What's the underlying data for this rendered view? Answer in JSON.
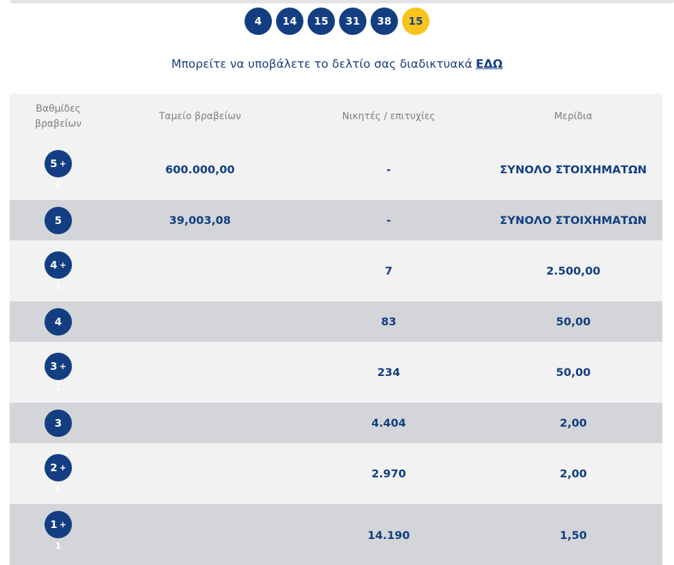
{
  "balls": [
    "4",
    "14",
    "15",
    "31",
    "38"
  ],
  "joker": "15",
  "notice": {
    "text": "Μπορείτε να υποβάλετε το δελτίο σας διαδικτυακά",
    "link": "ΕΔΩ"
  },
  "table": {
    "headers": {
      "category": "Βαθμίδες βραβείων",
      "fund": "Ταμείο βραβείων",
      "winners": "Νικητές / επιτυχίες",
      "share": "Μερίδια"
    },
    "rows": [
      {
        "cat": "5",
        "plus": "+",
        "sub": "1",
        "fund": "600.000,00",
        "winners": "-",
        "share": "ΣΥΝΟΛΟ ΣΤΟΙΧΗΜΑΤΩΝ"
      },
      {
        "cat": "5",
        "plus": "",
        "sub": "",
        "fund": "39,003,08",
        "winners": "-",
        "share": "ΣΥΝΟΛΟ ΣΤΟΙΧΗΜΑΤΩΝ"
      },
      {
        "cat": "4",
        "plus": "+",
        "sub": "1",
        "fund": "",
        "winners": "7",
        "share": "2.500,00"
      },
      {
        "cat": "4",
        "plus": "",
        "sub": "",
        "fund": "",
        "winners": "83",
        "share": "50,00"
      },
      {
        "cat": "3",
        "plus": "+",
        "sub": "1",
        "fund": "",
        "winners": "234",
        "share": "50,00"
      },
      {
        "cat": "3",
        "plus": "",
        "sub": "",
        "fund": "",
        "winners": "4.404",
        "share": "2,00"
      },
      {
        "cat": "2",
        "plus": "+",
        "sub": "1",
        "fund": "",
        "winners": "2.970",
        "share": "2,00"
      },
      {
        "cat": "1",
        "plus": "+",
        "sub": "1",
        "fund": "",
        "winners": "14.190",
        "share": "1,50"
      }
    ]
  },
  "colors": {
    "ball": "#133f82",
    "joker": "#f9c31c",
    "row_light": "#f2f2f2",
    "row_dark": "#d3d5d8"
  }
}
